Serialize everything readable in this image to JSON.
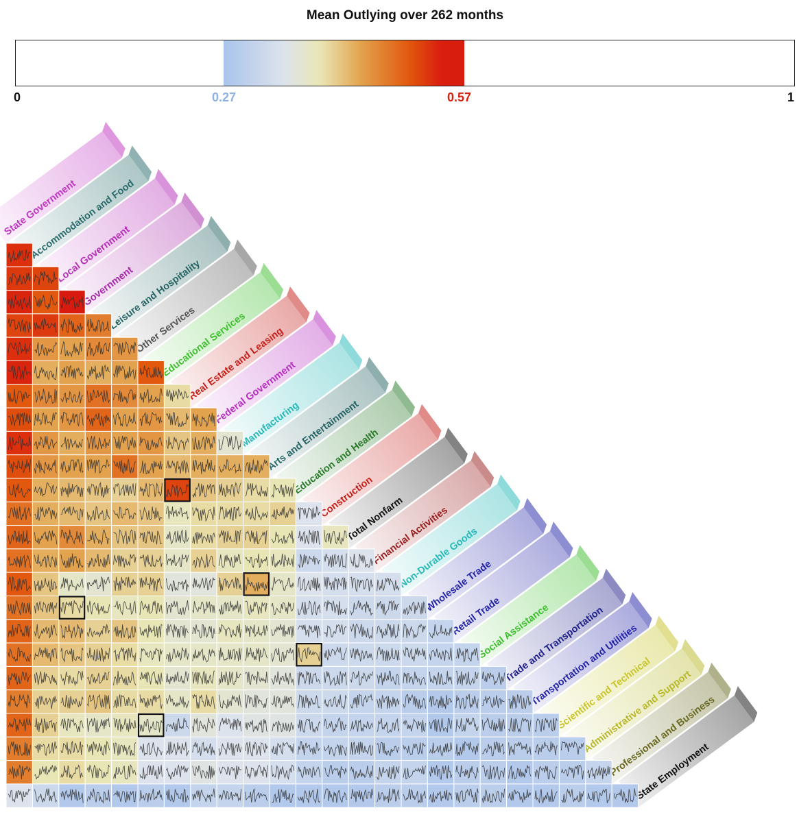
{
  "title": "Mean Outlying over 262 months",
  "legend": {
    "min_label": "0",
    "low_label": "0.27",
    "high_label": "0.57",
    "max_label": "1",
    "low_value": 0.27,
    "high_value": 0.57
  },
  "colors": {
    "scale": [
      "#a9c4ec",
      "#dde3ec",
      "#e9e6b5",
      "#e3a34e",
      "#e1580e",
      "#d81b0e"
    ],
    "cell_border": "#ffffff",
    "sparkline": "#333333",
    "highlight": "#111111"
  },
  "chart_data": {
    "type": "heatmap",
    "title": "Mean Outlying over 262 months",
    "months": 262,
    "value_range": [
      0,
      1
    ],
    "color_range": [
      0.27,
      0.57
    ],
    "variables": [
      {
        "name": "State Government",
        "color": "#c036c2"
      },
      {
        "name": "Accommodation and Food",
        "color": "#2b6b6b"
      },
      {
        "name": "Local Government",
        "color": "#b52fb8"
      },
      {
        "name": "Government",
        "color": "#a72aa9"
      },
      {
        "name": "Leisure and Hospitality",
        "color": "#276464"
      },
      {
        "name": "Other Services",
        "color": "#555555"
      },
      {
        "name": "Educational Services",
        "color": "#3fbf2f"
      },
      {
        "name": "Real Estate and Leasing",
        "color": "#c4201a"
      },
      {
        "name": "Federal Government",
        "color": "#b62fc0"
      },
      {
        "name": "Manufacturing",
        "color": "#27b8b8"
      },
      {
        "name": "Arts and Entertainment",
        "color": "#276464"
      },
      {
        "name": "Education and Health",
        "color": "#2a7a2a"
      },
      {
        "name": "Construction",
        "color": "#c4201a"
      },
      {
        "name": "Total Nonfarm",
        "color": "#111111"
      },
      {
        "name": "Financial Activities",
        "color": "#9a2020"
      },
      {
        "name": "Non-Durable Goods",
        "color": "#27b8b8"
      },
      {
        "name": "Wholesale Trade",
        "color": "#2424a8"
      },
      {
        "name": "Retail Trade",
        "color": "#2424a8"
      },
      {
        "name": "Social Assistance",
        "color": "#3fbf2f"
      },
      {
        "name": "Trade and Transportation",
        "color": "#20208a"
      },
      {
        "name": "Transportation and Utilities",
        "color": "#2424a8"
      },
      {
        "name": "Scientific and Technical",
        "color": "#c8c42a"
      },
      {
        "name": "Administrative and Support",
        "color": "#b8b82a"
      },
      {
        "name": "Professional and Business",
        "color": "#686820"
      },
      {
        "name": "State Employment",
        "color": "#111111"
      }
    ],
    "row_values": [
      [
        0.55
      ],
      [
        0.54,
        0.53
      ],
      [
        0.56,
        0.51,
        0.58
      ],
      [
        0.53,
        0.54,
        0.5,
        0.48
      ],
      [
        0.55,
        0.46,
        0.45,
        0.47,
        0.46
      ],
      [
        0.56,
        0.44,
        0.45,
        0.44,
        0.45,
        0.51
      ],
      [
        0.51,
        0.47,
        0.46,
        0.49,
        0.47,
        0.45,
        0.4
      ],
      [
        0.52,
        0.45,
        0.46,
        0.5,
        0.45,
        0.46,
        0.43,
        0.45
      ],
      [
        0.55,
        0.46,
        0.44,
        0.46,
        0.45,
        0.46,
        0.42,
        0.44,
        0.36
      ],
      [
        0.52,
        0.46,
        0.45,
        0.45,
        0.49,
        0.45,
        0.43,
        0.44,
        0.44,
        0.44
      ],
      [
        0.51,
        0.44,
        0.43,
        0.42,
        0.41,
        0.43,
        0.53,
        0.42,
        0.41,
        0.4,
        0.39
      ],
      [
        0.49,
        0.44,
        0.43,
        0.42,
        0.43,
        0.42,
        0.38,
        0.4,
        0.4,
        0.4,
        0.41,
        0.33
      ],
      [
        0.5,
        0.45,
        0.47,
        0.44,
        0.42,
        0.42,
        0.37,
        0.4,
        0.41,
        0.41,
        0.39,
        0.33,
        0.38
      ],
      [
        0.49,
        0.44,
        0.45,
        0.43,
        0.41,
        0.41,
        0.37,
        0.41,
        0.38,
        0.39,
        0.38,
        0.31,
        0.32,
        0.33
      ],
      [
        0.51,
        0.42,
        0.37,
        0.36,
        0.41,
        0.41,
        0.35,
        0.35,
        0.41,
        0.44,
        0.37,
        0.33,
        0.32,
        0.32,
        0.32
      ],
      [
        0.49,
        0.42,
        0.4,
        0.39,
        0.38,
        0.39,
        0.36,
        0.37,
        0.37,
        0.38,
        0.37,
        0.32,
        0.32,
        0.31,
        0.31,
        0.31
      ],
      [
        0.5,
        0.43,
        0.43,
        0.41,
        0.42,
        0.39,
        0.36,
        0.36,
        0.38,
        0.37,
        0.36,
        0.32,
        0.32,
        0.31,
        0.31,
        0.31,
        0.3
      ],
      [
        0.49,
        0.43,
        0.42,
        0.41,
        0.4,
        0.38,
        0.37,
        0.37,
        0.37,
        0.37,
        0.36,
        0.41,
        0.31,
        0.31,
        0.31,
        0.31,
        0.3,
        0.3
      ],
      [
        0.5,
        0.41,
        0.4,
        0.41,
        0.4,
        0.39,
        0.36,
        0.38,
        0.37,
        0.36,
        0.35,
        0.31,
        0.31,
        0.31,
        0.3,
        0.3,
        0.3,
        0.3,
        0.29
      ],
      [
        0.48,
        0.41,
        0.41,
        0.42,
        0.4,
        0.4,
        0.37,
        0.4,
        0.36,
        0.35,
        0.35,
        0.31,
        0.31,
        0.3,
        0.3,
        0.29,
        0.28,
        0.29,
        0.29,
        0.29
      ],
      [
        0.5,
        0.41,
        0.38,
        0.37,
        0.38,
        0.37,
        0.31,
        0.35,
        0.33,
        0.34,
        0.34,
        0.31,
        0.3,
        0.3,
        0.3,
        0.3,
        0.28,
        0.3,
        0.29,
        0.29,
        0.29
      ],
      [
        0.48,
        0.4,
        0.4,
        0.39,
        0.38,
        0.33,
        0.33,
        0.32,
        0.33,
        0.33,
        0.32,
        0.3,
        0.3,
        0.3,
        0.29,
        0.29,
        0.29,
        0.28,
        0.29,
        0.29,
        0.29,
        0.29
      ],
      [
        0.48,
        0.39,
        0.4,
        0.39,
        0.38,
        0.33,
        0.33,
        0.34,
        0.33,
        0.33,
        0.32,
        0.3,
        0.29,
        0.29,
        0.3,
        0.3,
        0.28,
        0.29,
        0.29,
        0.28,
        0.29,
        0.29,
        0.3
      ],
      [
        0.33,
        0.31,
        0.28,
        0.29,
        0.28,
        0.29,
        0.28,
        0.3,
        0.3,
        0.29,
        0.28,
        0.28,
        0.28,
        0.28,
        0.29,
        0.29,
        0.28,
        0.29,
        0.29,
        0.28,
        0.28,
        0.29,
        0.28,
        0.28
      ]
    ],
    "highlighted_cells": [
      [
        10,
        6
      ],
      [
        14,
        9
      ],
      [
        15,
        2
      ],
      [
        17,
        11
      ],
      [
        20,
        5
      ]
    ]
  }
}
